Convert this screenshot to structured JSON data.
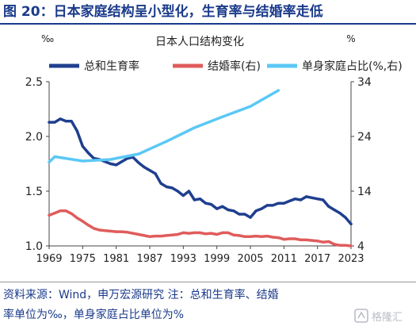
{
  "figure": {
    "label": "图 20：日本家庭结构呈小型化，生育率与结婚率走低",
    "source_line1": "资料来源：Wind，申万宏源研究  注：总和生育率、结婚",
    "source_line2": "率单位为‰，单身家庭占比单位为%",
    "watermark": "格隆汇"
  },
  "chart_data": {
    "type": "line",
    "title": "日本人口结构变化",
    "y_left_unit": "‰",
    "y_right_unit": "%",
    "y_left_lim": [
      1.0,
      2.5
    ],
    "y_left_ticks": [
      "1.0",
      "1.5",
      "2.0",
      "2.5"
    ],
    "y_right_lim": [
      4,
      34
    ],
    "y_right_ticks": [
      "4",
      "14",
      "24",
      "34"
    ],
    "x_lim": [
      1969,
      2023
    ],
    "x_ticks": [
      "1969",
      "1975",
      "1981",
      "1987",
      "1993",
      "1999",
      "2005",
      "2011",
      "2017",
      "2023"
    ],
    "legend": [
      "总和生育率",
      "结婚率(右)",
      "单身家庭占比(%,右)"
    ],
    "grid": false,
    "legend_position": "top",
    "series": [
      {
        "name": "总和生育率",
        "axis": "left",
        "color": "#1f3f8f",
        "x": [
          1969,
          1970,
          1971,
          1972,
          1973,
          1974,
          1975,
          1976,
          1977,
          1978,
          1979,
          1980,
          1981,
          1982,
          1983,
          1984,
          1985,
          1986,
          1987,
          1988,
          1989,
          1990,
          1991,
          1992,
          1993,
          1994,
          1995,
          1996,
          1997,
          1998,
          1999,
          2000,
          2001,
          2002,
          2003,
          2004,
          2005,
          2006,
          2007,
          2008,
          2009,
          2010,
          2011,
          2012,
          2013,
          2014,
          2015,
          2016,
          2017,
          2018,
          2019,
          2020,
          2021,
          2022,
          2023
        ],
        "y": [
          2.13,
          2.13,
          2.16,
          2.14,
          2.14,
          2.05,
          1.91,
          1.85,
          1.8,
          1.79,
          1.77,
          1.75,
          1.74,
          1.77,
          1.8,
          1.81,
          1.76,
          1.72,
          1.69,
          1.66,
          1.57,
          1.54,
          1.53,
          1.5,
          1.46,
          1.5,
          1.42,
          1.43,
          1.39,
          1.38,
          1.34,
          1.36,
          1.33,
          1.32,
          1.29,
          1.29,
          1.26,
          1.32,
          1.34,
          1.37,
          1.37,
          1.39,
          1.39,
          1.41,
          1.43,
          1.42,
          1.45,
          1.44,
          1.43,
          1.42,
          1.36,
          1.33,
          1.3,
          1.26,
          1.2
        ]
      },
      {
        "name": "结婚率(右)",
        "axis": "right",
        "color": "#e05c5c",
        "x": [
          1969,
          1970,
          1971,
          1972,
          1973,
          1974,
          1975,
          1976,
          1977,
          1978,
          1979,
          1980,
          1981,
          1982,
          1983,
          1984,
          1985,
          1986,
          1987,
          1988,
          1989,
          1990,
          1991,
          1992,
          1993,
          1994,
          1995,
          1996,
          1997,
          1998,
          1999,
          2000,
          2001,
          2002,
          2003,
          2004,
          2005,
          2006,
          2007,
          2008,
          2009,
          2010,
          2011,
          2012,
          2013,
          2014,
          2015,
          2016,
          2017,
          2018,
          2019,
          2020,
          2021,
          2022,
          2023
        ],
        "y": [
          9.6,
          10.0,
          10.4,
          10.4,
          9.9,
          9.1,
          8.5,
          7.8,
          7.2,
          6.9,
          6.8,
          6.7,
          6.6,
          6.6,
          6.5,
          6.3,
          6.1,
          5.9,
          5.7,
          5.8,
          5.8,
          5.9,
          6.0,
          6.1,
          6.4,
          6.3,
          6.4,
          6.4,
          6.2,
          6.3,
          6.1,
          6.4,
          6.4,
          6.0,
          5.9,
          5.7,
          5.7,
          5.8,
          5.7,
          5.8,
          5.6,
          5.5,
          5.2,
          5.3,
          5.3,
          5.1,
          5.1,
          5.0,
          4.9,
          4.7,
          4.8,
          4.3,
          4.1,
          4.1,
          4.0
        ]
      },
      {
        "name": "单身家庭占比(%,右)",
        "axis": "right",
        "color": "#5bc8f5",
        "x": [
          1969,
          1970,
          1975,
          1980,
          1985,
          1990,
          1995,
          2000,
          2005,
          2010
        ],
        "y": [
          19.3,
          20.3,
          19.5,
          19.8,
          20.8,
          23.1,
          25.6,
          27.6,
          29.5,
          32.4
        ]
      }
    ]
  }
}
